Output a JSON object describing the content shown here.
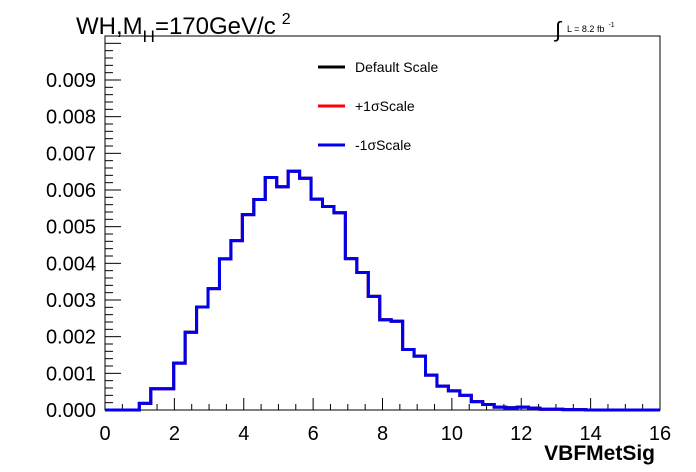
{
  "chart_data": {
    "type": "line",
    "title": {
      "main": "WH,M",
      "subscript": "H",
      "suffix": "=170GeV/c",
      "superscript": "2"
    },
    "luminosity": {
      "integral_symbol": "∫",
      "text": "L = 8.2 fb",
      "superscript": "-1"
    },
    "xlabel": "VBFMetSig",
    "ylabel": "",
    "xlim": [
      0,
      16
    ],
    "ylim": [
      0,
      0.0102
    ],
    "xticks": [
      "0",
      "2",
      "4",
      "6",
      "8",
      "10",
      "12",
      "14",
      "16"
    ],
    "yticks": [
      "0.000",
      "0.001",
      "0.002",
      "0.003",
      "0.004",
      "0.005",
      "0.006",
      "0.007",
      "0.008",
      "0.009"
    ],
    "grid": false,
    "legend_placement": "top-center",
    "bin_width": 0.33,
    "x_start": 0,
    "series": [
      {
        "name": "Default Scale",
        "color": "#000000",
        "values": [
          0,
          0,
          0,
          0.00018,
          0.00058,
          0.00058,
          0.00128,
          0.00212,
          0.00281,
          0.00331,
          0.00412,
          0.00462,
          0.00533,
          0.00574,
          0.00634,
          0.00609,
          0.00651,
          0.00632,
          0.00575,
          0.00555,
          0.00538,
          0.00413,
          0.00375,
          0.0031,
          0.00246,
          0.00242,
          0.00165,
          0.00147,
          0.00095,
          0.00065,
          0.00052,
          0.0004,
          0.00023,
          0.00015,
          8e-05,
          6e-05,
          8e-05,
          5e-05,
          2e-05,
          2e-05,
          1e-05,
          1e-05,
          0,
          0,
          0,
          0,
          0,
          0
        ]
      },
      {
        "name": "+1σScale",
        "color": "#ff0000",
        "values": [
          0,
          0,
          0,
          0.00018,
          0.00058,
          0.00058,
          0.00128,
          0.00212,
          0.00281,
          0.00331,
          0.00412,
          0.00462,
          0.00533,
          0.00574,
          0.00634,
          0.00609,
          0.00651,
          0.00632,
          0.00575,
          0.00555,
          0.00538,
          0.00413,
          0.00375,
          0.0031,
          0.00246,
          0.00242,
          0.00165,
          0.00147,
          0.00095,
          0.00065,
          0.00052,
          0.0004,
          0.00023,
          0.00015,
          8e-05,
          6e-05,
          8e-05,
          5e-05,
          2e-05,
          2e-05,
          1e-05,
          1e-05,
          0,
          0,
          0,
          0,
          0,
          0
        ]
      },
      {
        "name": "-1σScale",
        "color": "#0000ee",
        "values": [
          0,
          0,
          0,
          0.00018,
          0.00058,
          0.00058,
          0.00128,
          0.00212,
          0.00281,
          0.00331,
          0.00412,
          0.00462,
          0.00533,
          0.00574,
          0.00634,
          0.00609,
          0.00651,
          0.00632,
          0.00575,
          0.00555,
          0.00538,
          0.00413,
          0.00375,
          0.0031,
          0.00246,
          0.00242,
          0.00165,
          0.00147,
          0.00095,
          0.00065,
          0.00052,
          0.0004,
          0.00023,
          0.00015,
          8e-05,
          6e-05,
          8e-05,
          5e-05,
          2e-05,
          2e-05,
          1e-05,
          1e-05,
          0,
          0,
          0,
          0,
          0,
          0
        ]
      }
    ]
  }
}
